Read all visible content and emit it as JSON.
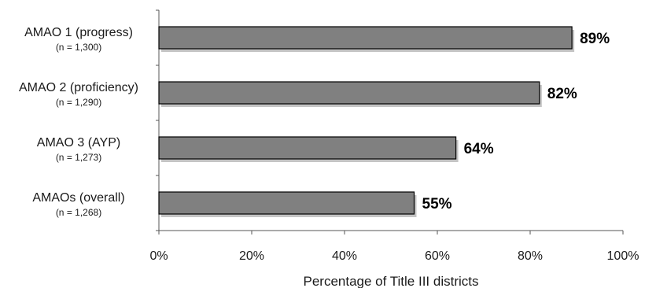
{
  "chart_data": {
    "type": "bar",
    "orientation": "horizontal",
    "categories": [
      {
        "label": "AMAO 1 (progress)",
        "sublabel": "(n = 1,300)"
      },
      {
        "label": "AMAO 2 (proficiency)",
        "sublabel": "(n = 1,290)"
      },
      {
        "label": "AMAO 3 (AYP)",
        "sublabel": "(n = 1,273)"
      },
      {
        "label": "AMAOs (overall)",
        "sublabel": "(n = 1,268)"
      }
    ],
    "values": [
      89,
      82,
      64,
      55
    ],
    "value_labels": [
      "89%",
      "82%",
      "64%",
      "55%"
    ],
    "xlabel": "Percentage of Title III districts",
    "xlim": [
      0,
      100
    ],
    "xticks": [
      "0%",
      "20%",
      "40%",
      "60%",
      "80%",
      "100%"
    ],
    "grid": false,
    "colors": {
      "bar": "#808080",
      "bar_edge": "#000000",
      "bar_shadow": "#c4c4c4",
      "axis": "#555555"
    }
  }
}
